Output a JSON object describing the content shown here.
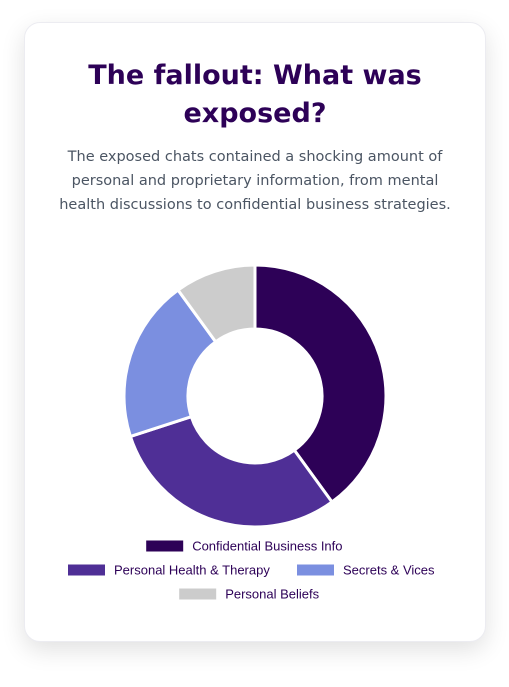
{
  "card": {
    "title": "The fallout: What was exposed?",
    "description": "The exposed chats contained a shocking amount of personal and proprietary information, from mental health discussions to confidential business strategies."
  },
  "chart_data": {
    "type": "pie",
    "donut": true,
    "title": "",
    "categories": [
      "Confidential Business Info",
      "Personal Health & Therapy",
      "Secrets & Vices",
      "Personal Beliefs"
    ],
    "values": [
      40,
      30,
      20,
      10
    ],
    "colors": [
      "#2d0157",
      "#4f2f96",
      "#7b8fe0",
      "#cccccc"
    ],
    "legend_position": "bottom"
  }
}
